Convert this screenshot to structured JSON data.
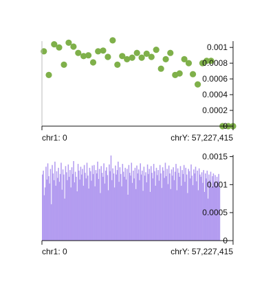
{
  "chart_data": [
    {
      "type": "scatter",
      "color": "#7fb04a",
      "y_ticks": [
        "0.001",
        "0.0008",
        "0.0006",
        "0.0004",
        "0.0002",
        "0"
      ],
      "y_tick_values": [
        0.001,
        0.0008,
        0.0006,
        0.0004,
        0.0002,
        0
      ],
      "ylim": [
        0,
        0.00108
      ],
      "x_start_label": "chr1: 0",
      "x_end_label": "chrY: 57,227,415",
      "grid": false,
      "points": [
        {
          "x": 0.01,
          "y": 0.00095
        },
        {
          "x": 0.036,
          "y": 0.00065
        },
        {
          "x": 0.064,
          "y": 0.00104
        },
        {
          "x": 0.09,
          "y": 0.001
        },
        {
          "x": 0.115,
          "y": 0.00078
        },
        {
          "x": 0.14,
          "y": 0.00106
        },
        {
          "x": 0.165,
          "y": 0.00101
        },
        {
          "x": 0.19,
          "y": 0.00093
        },
        {
          "x": 0.218,
          "y": 0.00089
        },
        {
          "x": 0.243,
          "y": 0.0009
        },
        {
          "x": 0.268,
          "y": 0.00081
        },
        {
          "x": 0.294,
          "y": 0.00095
        },
        {
          "x": 0.32,
          "y": 0.00096
        },
        {
          "x": 0.345,
          "y": 0.00088
        },
        {
          "x": 0.37,
          "y": 0.00109
        },
        {
          "x": 0.395,
          "y": 0.00078
        },
        {
          "x": 0.42,
          "y": 0.00089
        },
        {
          "x": 0.445,
          "y": 0.00085
        },
        {
          "x": 0.472,
          "y": 0.00087
        },
        {
          "x": 0.497,
          "y": 0.00093
        },
        {
          "x": 0.522,
          "y": 0.00087
        },
        {
          "x": 0.548,
          "y": 0.00092
        },
        {
          "x": 0.573,
          "y": 0.00088
        },
        {
          "x": 0.598,
          "y": 0.00097
        },
        {
          "x": 0.623,
          "y": 0.00073
        },
        {
          "x": 0.648,
          "y": 0.00085
        },
        {
          "x": 0.672,
          "y": 0.00093
        },
        {
          "x": 0.697,
          "y": 0.00065
        },
        {
          "x": 0.72,
          "y": 0.00067
        },
        {
          "x": 0.745,
          "y": 0.00085
        },
        {
          "x": 0.768,
          "y": 0.0008
        },
        {
          "x": 0.79,
          "y": 0.00066
        },
        {
          "x": 0.815,
          "y": 0.00053
        },
        {
          "x": 0.84,
          "y": 0.0008
        },
        {
          "x": 0.862,
          "y": 0.00083
        },
        {
          "x": 0.885,
          "y": 0.00083
        },
        {
          "x": 0.945,
          "y": 0.0
        },
        {
          "x": 0.975,
          "y": 0.0
        },
        {
          "x": 1.0,
          "y": 0.0
        }
      ]
    },
    {
      "type": "bar",
      "color": "#b39cf0",
      "y_ticks": [
        "0.0015",
        "0.001",
        "0.0005",
        "0"
      ],
      "y_tick_values": [
        0.0015,
        0.001,
        0.0005,
        0
      ],
      "ylim": [
        0,
        0.00153
      ],
      "x_start_label": "chr1: 0",
      "x_end_label": "chrY: 57,227,415",
      "grid": false,
      "values": [
        0.00118,
        0.00125,
        0.00081,
        0.00095,
        0.00132,
        0.00109,
        0.00138,
        0.00115,
        0.00102,
        0.00128,
        0.00065,
        0.00135,
        0.0012,
        0.00108,
        0.00141,
        0.00098,
        0.00124,
        0.00112,
        0.0013,
        0.00105,
        0.00119,
        0.00139,
        0.00091,
        0.00127,
        0.00118,
        0.00075,
        0.00133,
        0.00122,
        0.00108,
        0.00136,
        0.00114,
        0.00126,
        0.00095,
        0.00131,
        0.00119,
        0.00142,
        0.00104,
        0.00123,
        0.00114,
        0.00088,
        0.00137,
        0.00125,
        0.00109,
        0.00132,
        0.00118,
        0.00128,
        0.00098,
        0.00135,
        0.00121,
        0.00111,
        0.00139,
        0.00116,
        0.00093,
        0.0013,
        0.00124,
        0.00107,
        0.00134,
        0.00119,
        0.00135,
        0.00097,
        0.00126,
        0.0012,
        0.00141,
        0.0011,
        0.00128,
        0.00085,
        0.00133,
        0.00121,
        0.00114,
        0.00138,
        0.00102,
        0.00125,
        0.00131,
        0.00117,
        0.0009,
        0.00136,
        0.00124,
        0.00152,
        0.00108,
        0.00129,
        0.0012,
        0.00095,
        0.00134,
        0.00118,
        0.00126,
        0.00141,
        0.00105,
        0.00131,
        0.00119,
        0.00097,
        0.00137,
        0.00123,
        0.00114,
        0.0013,
        0.00109,
        0.00128,
        0.00082,
        0.00135,
        0.00121,
        0.00116,
        0.00139,
        0.00103,
        0.00125,
        0.00111,
        0.0013,
        0.00092,
        0.00134,
        0.0012,
        0.00127,
        0.00108,
        0.00138,
        0.00118,
        0.00125,
        0.00089,
        0.00132,
        0.00116,
        0.00122,
        0.00104,
        0.00136,
        0.00119,
        0.00128,
        0.00087,
        0.00133,
        0.00121,
        0.00111,
        0.00137,
        0.00124,
        0.00098,
        0.0013,
        0.00117,
        0.00126,
        0.00107,
        0.00135,
        0.0012,
        0.00094,
        0.00131,
        0.00125,
        0.00112,
        0.00139,
        0.00115,
        0.00128,
        0.00101,
        0.00134,
        0.0012,
        0.00092,
        0.00127,
        0.00116,
        0.00131,
        0.00108,
        0.00123,
        0.00137,
        0.0009,
        0.00129,
        0.00121,
        0.00114,
        0.00133,
        0.00098,
        0.00126,
        0.00119,
        0.00135,
        0.00105,
        0.0013,
        0.00118,
        0.00085,
        0.00128,
        0.00124,
        0.00111,
        0.00136,
        0.00116,
        0.00099,
        0.00127,
        0.0012,
        0.00132,
        0.00106,
        0.00125,
        0.0009,
        0.00129,
        0.00118,
        0.00114,
        0.00122,
        0.00103,
        0.00126,
        0.00087,
        0.0012,
        0.00111,
        0.00125,
        0.00075,
        0.00118,
        0.00108,
        0.00123,
        0.00096,
        0.00115,
        0.0012,
        0.00105,
        0.00117,
        0.00098,
        0.00114,
        0.00106,
        0.00119,
        0.00095
      ]
    }
  ]
}
